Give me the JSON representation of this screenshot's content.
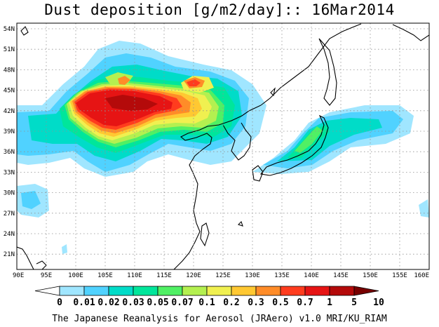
{
  "title": "Dust deposition [g/m2/day]:: 16Mar2014",
  "credit": "The Japanese Reanalysis for Aerosol (JRAero) v1.0 MRI/KU_RIAM",
  "lat_labels": [
    "54N",
    "51N",
    "48N",
    "45N",
    "42N",
    "39N",
    "36N",
    "33N",
    "30N",
    "27N",
    "24N",
    "21N"
  ],
  "lon_labels": [
    "90E",
    "95E",
    "100E",
    "105E",
    "110E",
    "115E",
    "120E",
    "125E",
    "130E",
    "135E",
    "140E",
    "145E",
    "150E",
    "155E",
    "160E"
  ],
  "colorbar": {
    "labels": [
      "0",
      "0.01",
      "0.02",
      "0.03",
      "0.05",
      "0.07",
      "0.1",
      "0.2",
      "0.3",
      "0.5",
      "0.7",
      "1",
      "5",
      "10"
    ],
    "colors": [
      "#ffffff",
      "#a0e6ff",
      "#50d2ff",
      "#00dcc8",
      "#00e69b",
      "#50f064",
      "#b4f050",
      "#f0f050",
      "#ffc832",
      "#ff8c28",
      "#ff3c1e",
      "#e61414",
      "#b40a0a",
      "#780000"
    ]
  }
}
